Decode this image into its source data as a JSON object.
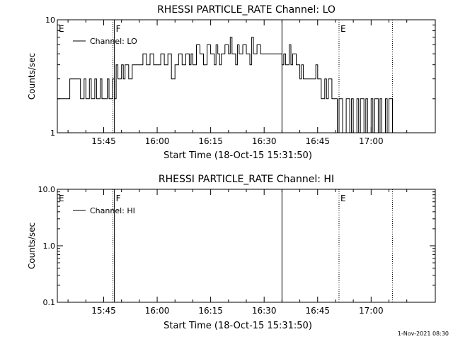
{
  "footer_date": "1-Nov-2021 08:30",
  "chart_data": [
    {
      "type": "line",
      "title": "RHESSI PARTICLE_RATE Channel: LO",
      "xlabel": "Start Time (18-Oct-15 15:31:50)",
      "ylabel": "Counts/sec",
      "y_scale": "log",
      "ylim": [
        1,
        10
      ],
      "ytick_labels": [
        {
          "value": 1,
          "label": "1"
        },
        {
          "value": 10,
          "label": "10"
        }
      ],
      "xlim": [
        "15:32",
        "17:18"
      ],
      "xtick_labels": [
        "15:45",
        "16:00",
        "16:15",
        "16:30",
        "16:45",
        "17:00"
      ],
      "legend": {
        "position": "top-left",
        "label": "Channel: LO"
      },
      "grid": false,
      "event_markers": [
        {
          "label": "E",
          "time": "15:32",
          "style": "dotted"
        },
        {
          "label": "F",
          "time": "15:48",
          "style": "dotted-solid"
        },
        {
          "label": "",
          "time": "16:35",
          "style": "solid"
        },
        {
          "label": "E",
          "time": "16:51",
          "style": "dotted"
        },
        {
          "label": "",
          "time": "17:06",
          "style": "dotted"
        }
      ],
      "series": [
        {
          "name": "Channel: LO",
          "x": [
            "15:32",
            "15:35",
            "15:35.5",
            "15:38",
            "15:38.5",
            "15:39.5",
            "15:40",
            "15:41",
            "15:41.5",
            "15:42.5",
            "15:43",
            "15:44",
            "15:44.5",
            "15:46",
            "15:46.5",
            "15:47.5",
            "15:48",
            "15:48.5",
            "15:49",
            "15:50",
            "15:50.5",
            "15:51",
            "15:52",
            "15:53",
            "15:55",
            "15:56",
            "15:57",
            "15:58",
            "15:59",
            "16:01",
            "16:02",
            "16:03",
            "16:04",
            "16:05",
            "16:06",
            "16:07",
            "16:08",
            "16:09",
            "16:09.5",
            "16:10",
            "16:11",
            "16:12",
            "16:13",
            "16:14",
            "16:15",
            "16:16",
            "16:16.5",
            "16:17",
            "16:17.5",
            "16:18",
            "16:19",
            "16:20",
            "16:20.5",
            "16:21",
            "16:22",
            "16:22.5",
            "16:23",
            "16:24",
            "16:25",
            "16:26",
            "16:26.5",
            "16:27",
            "16:28",
            "16:29",
            "16:30",
            "16:31",
            "16:32",
            "16:33",
            "16:34",
            "16:35",
            "16:35.5",
            "16:36",
            "16:37",
            "16:37.5",
            "16:38",
            "16:39",
            "16:40",
            "16:40.5",
            "16:41",
            "16:42",
            "16:43",
            "16:44",
            "16:44.5",
            "16:45",
            "16:46",
            "16:47",
            "16:47.5",
            "16:48",
            "16:49",
            "16:50",
            "16:50.5",
            "16:51",
            "16:52",
            "16:53",
            "16:54",
            "16:54.5",
            "16:55",
            "16:56",
            "16:56.5",
            "16:57",
            "16:58",
            "16:58.5",
            "16:59",
            "17:00",
            "17:00.5",
            "17:01",
            "17:02",
            "17:02.5",
            "17:03",
            "17:04",
            "17:04.5",
            "17:05",
            "17:06"
          ],
          "y": [
            2,
            2,
            3,
            3,
            2,
            3,
            2,
            3,
            2,
            3,
            2,
            3,
            2,
            3,
            2,
            3,
            2,
            4,
            3,
            4,
            3,
            4,
            3,
            4,
            4,
            5,
            4,
            5,
            4,
            5,
            4,
            5,
            3,
            4,
            5,
            4,
            5,
            4,
            5,
            4,
            6,
            5,
            4,
            6,
            5,
            4,
            6,
            5,
            4,
            5,
            6,
            5,
            7,
            5,
            4,
            6,
            5,
            6,
            5,
            4,
            7,
            5,
            6,
            5,
            5,
            5,
            5,
            5,
            5,
            4,
            5,
            4,
            6,
            4,
            5,
            4,
            3,
            4,
            3,
            3,
            3,
            3,
            4,
            3,
            2,
            3,
            2,
            3,
            2,
            2,
            1,
            2,
            1,
            2,
            1,
            2,
            1,
            2,
            1,
            2,
            1,
            2,
            1,
            2,
            1,
            2,
            1,
            2,
            1,
            2,
            1,
            2,
            1
          ]
        }
      ]
    },
    {
      "type": "line",
      "title": "RHESSI PARTICLE_RATE Channel: HI",
      "xlabel": "Start Time (18-Oct-15 15:31:50)",
      "ylabel": "Counts/sec",
      "y_scale": "log",
      "ylim": [
        0.1,
        10
      ],
      "ytick_labels": [
        {
          "value": 0.1,
          "label": "0.1"
        },
        {
          "value": 1,
          "label": "1.0"
        },
        {
          "value": 10,
          "label": "10.0"
        }
      ],
      "xlim": [
        "15:32",
        "17:18"
      ],
      "xtick_labels": [
        "15:45",
        "16:00",
        "16:15",
        "16:30",
        "16:45",
        "17:00"
      ],
      "legend": {
        "position": "top-left",
        "label": "Channel: HI"
      },
      "grid": false,
      "event_markers": [
        {
          "label": "E",
          "time": "15:32",
          "style": "dotted"
        },
        {
          "label": "F",
          "time": "15:48",
          "style": "dotted-solid"
        },
        {
          "label": "",
          "time": "16:35",
          "style": "solid"
        },
        {
          "label": "E",
          "time": "16:51",
          "style": "dotted"
        },
        {
          "label": "",
          "time": "17:06",
          "style": "dotted"
        }
      ],
      "series": [
        {
          "name": "Channel: HI",
          "x": [],
          "y": []
        }
      ]
    }
  ]
}
